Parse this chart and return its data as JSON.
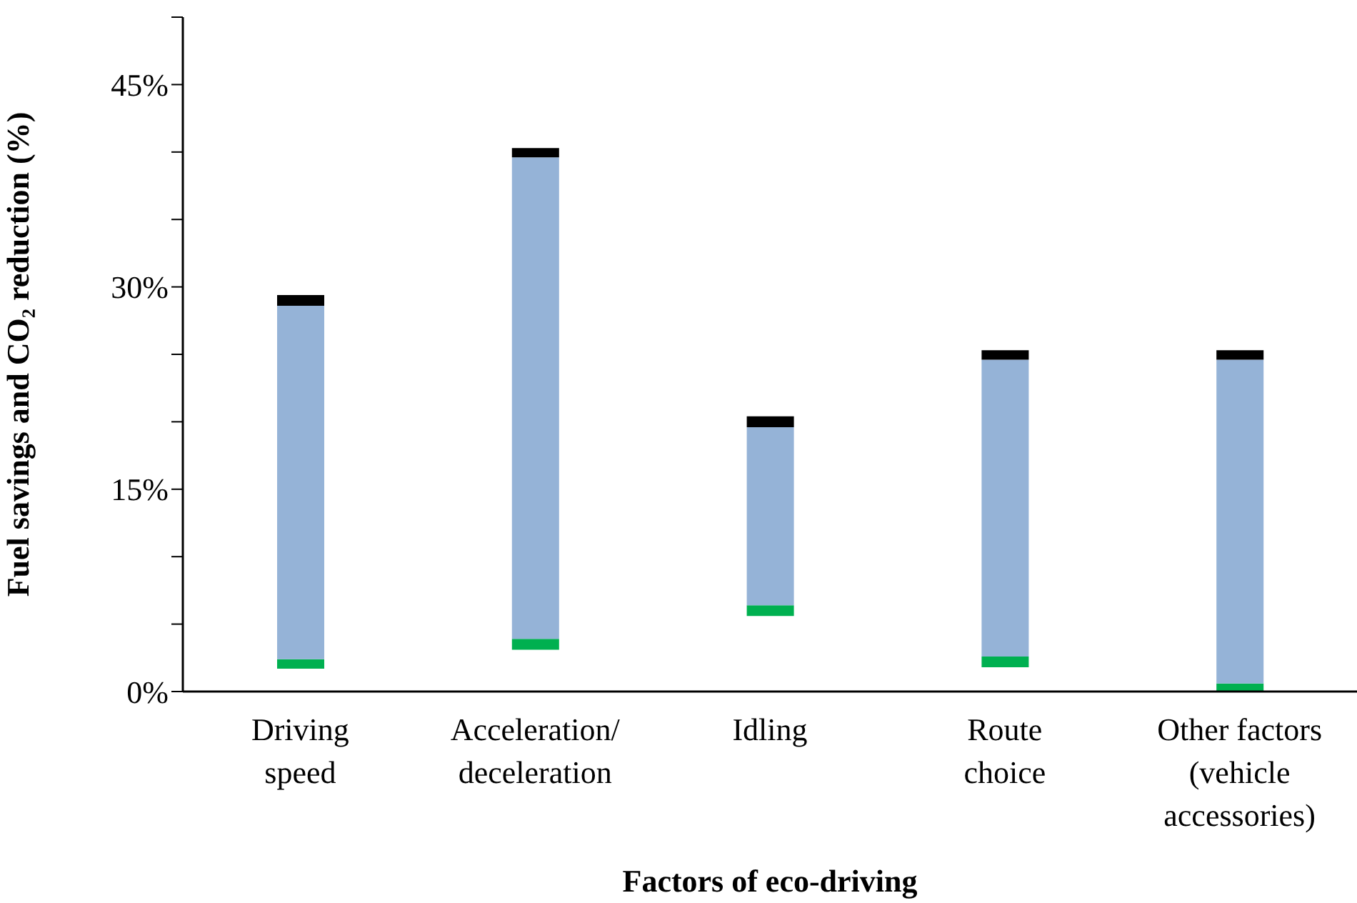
{
  "chart_data": {
    "type": "bar",
    "xlabel": "Factors of eco-driving",
    "ylabel": "Fuel savings and CO₂ reduction (%)",
    "categories": [
      "Driving\nspeed",
      "Acceleration/\ndeceleration",
      "Idling",
      "Route\nchoice",
      "Other factors\n(vehicle\naccessories)"
    ],
    "series": [
      {
        "color": "#00b050",
        "base": [
          1.7,
          3.1,
          5.6,
          1.8,
          0
        ],
        "values": [
          0.7,
          0.8,
          0.8,
          0.8,
          0.6
        ]
      },
      {
        "color": "#95b3d7",
        "base": [
          2.4,
          3.9,
          6.4,
          2.6,
          0.6
        ],
        "values": [
          26.2,
          35.7,
          13.2,
          22.0,
          24.0
        ]
      },
      {
        "color": "#000000",
        "base": [
          28.6,
          39.6,
          19.6,
          24.6,
          24.6
        ],
        "values": [
          0.8,
          0.7,
          0.8,
          0.7,
          0.7
        ]
      }
    ],
    "ylim": [
      0,
      50
    ],
    "yticks": [
      {
        "value": 0,
        "label": "0%"
      },
      {
        "value": 5,
        "label": null
      },
      {
        "value": 10,
        "label": null
      },
      {
        "value": 15,
        "label": "15%"
      },
      {
        "value": 20,
        "label": null
      },
      {
        "value": 25,
        "label": null
      },
      {
        "value": 30,
        "label": "30%"
      },
      {
        "value": 35,
        "label": null
      },
      {
        "value": 40,
        "label": null
      },
      {
        "value": 45,
        "label": "45%"
      },
      {
        "value": 50,
        "label": null
      }
    ],
    "grid": false,
    "legend": false
  }
}
